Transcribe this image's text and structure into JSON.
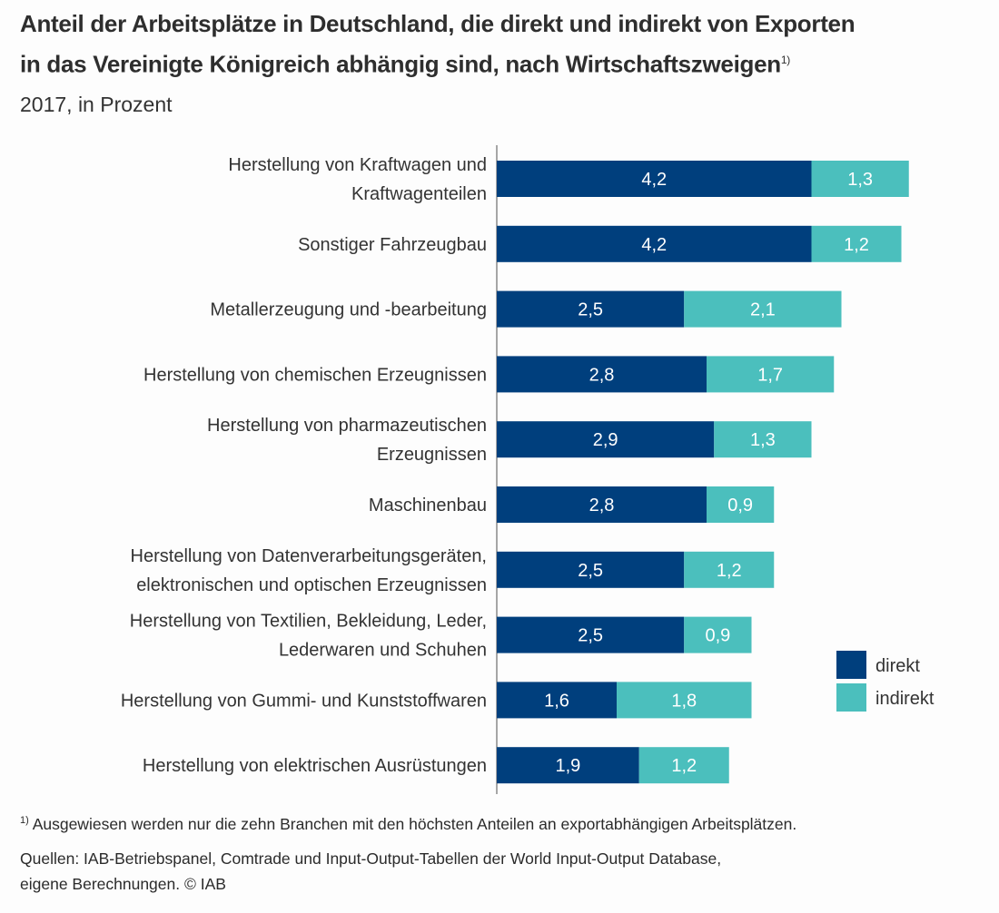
{
  "header": {
    "title_line1": "Anteil der Arbeitsplätze in Deutschland, die direkt und indirekt von Exporten",
    "title_line2": "in das Vereinigte Königreich abhängig sind, nach Wirtschaftszweigen",
    "title_footnote_mark": "1)",
    "subtitle": "2017, in Prozent"
  },
  "footer": {
    "footnote_mark": "1)",
    "footnote": "Ausgewiesen werden nur die zehn Branchen mit den höchsten Anteilen an exportabhängigen Arbeitsplätzen.",
    "sources_line1": "Quellen: IAB-Betriebspanel, Comtrade und Input-Output-Tabellen der World Input-Output Database,",
    "sources_line2": "eigene Berechnungen.  © IAB"
  },
  "chart_data": {
    "type": "bar",
    "orientation": "horizontal",
    "stacked": true,
    "title": "Anteil der Arbeitsplätze in Deutschland, die direkt und indirekt von Exporten in das Vereinigte Königreich abhängig sind, nach Wirtschaftszweigen",
    "subtitle": "2017, in Prozent",
    "xlabel": "",
    "ylabel": "",
    "grid": false,
    "legend_position": "right",
    "categories": [
      [
        "Herstellung von Kraftwagen und",
        "Kraftwagenteilen"
      ],
      [
        "Sonstiger Fahrzeugbau"
      ],
      [
        "Metallerzeugung und -bearbeitung"
      ],
      [
        "Herstellung von chemischen Erzeugnissen"
      ],
      [
        "Herstellung von pharmazeutischen",
        "Erzeugnissen"
      ],
      [
        "Maschinenbau"
      ],
      [
        "Herstellung von Datenverarbeitungsgeräten,",
        "elektronischen und optischen Erzeugnissen"
      ],
      [
        "Herstellung von Textilien, Bekleidung, Leder,",
        "Lederwaren und Schuhen"
      ],
      [
        "Herstellung von Gummi- und Kunststoffwaren"
      ],
      [
        "Herstellung von elektrischen Ausrüstungen"
      ]
    ],
    "series": [
      {
        "name": "direkt",
        "color": "#003f7d",
        "values": [
          4.2,
          4.2,
          2.5,
          2.8,
          2.9,
          2.8,
          2.5,
          2.5,
          1.6,
          1.9
        ],
        "labels": [
          "4,2",
          "4,2",
          "2,5",
          "2,8",
          "2,9",
          "2,8",
          "2,5",
          "2,5",
          "1,6",
          "1,9"
        ]
      },
      {
        "name": "indirekt",
        "color": "#4bbfbd",
        "values": [
          1.3,
          1.2,
          2.1,
          1.7,
          1.3,
          0.9,
          1.2,
          0.9,
          1.8,
          1.2
        ],
        "labels": [
          "1,3",
          "1,2",
          "2,1",
          "1,7",
          "1,3",
          "0,9",
          "1,2",
          "0,9",
          "1,8",
          "1,2"
        ]
      }
    ],
    "xlim": [
      0,
      6
    ]
  }
}
